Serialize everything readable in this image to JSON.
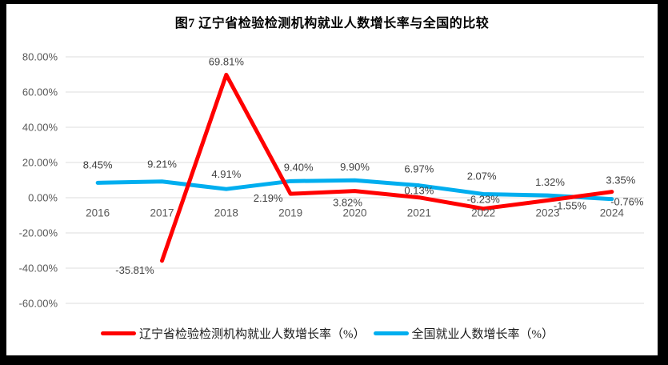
{
  "window": {
    "background": "#ffffff",
    "border_color": "#000000"
  },
  "chart_data": {
    "type": "line",
    "title": "图7 辽宁省检验检测机构就业人数增长率与全国的比较",
    "categories": [
      "2016",
      "2017",
      "2018",
      "2019",
      "2020",
      "2021",
      "2022",
      "2023",
      "2024"
    ],
    "series": [
      {
        "name": "辽宁省检验检测机构就业人数增长率（%）",
        "color": "#FF0000",
        "values": [
          null,
          -35.81,
          69.81,
          2.19,
          3.82,
          0.13,
          -6.23,
          -1.55,
          3.35
        ],
        "label_offsets": [
          null,
          [
            -34,
            16
          ],
          [
            0,
            -12
          ],
          [
            -28,
            10
          ],
          [
            -9,
            19
          ],
          [
            0,
            -4
          ],
          [
            0,
            -7
          ],
          [
            28,
            11
          ],
          [
            11,
            -10
          ]
        ]
      },
      {
        "name": "全国就业人数增长率（%）",
        "color": "#00AEEF",
        "values": [
          8.45,
          9.21,
          4.91,
          9.4,
          9.9,
          6.97,
          2.07,
          1.32,
          -0.76
        ],
        "label_offsets": [
          [
            0,
            -18
          ],
          [
            0,
            -17
          ],
          [
            0,
            -14
          ],
          [
            10,
            -13
          ],
          [
            0,
            -12
          ],
          [
            0,
            -16
          ],
          [
            -2,
            -18
          ],
          [
            3,
            -12
          ],
          [
            19,
            8
          ]
        ]
      }
    ],
    "y_axis": {
      "min": -60,
      "max": 80,
      "step": 20,
      "tick_labels": [
        "80.00%",
        "60.00%",
        "40.00%",
        "20.00%",
        "0.00%",
        "-20.00%",
        "-40.00%",
        "-60.00%"
      ]
    },
    "grid": true,
    "gridline_color": "#DCDCDC",
    "tick_label_color": "#595959",
    "data_label_color": "#404040",
    "data_label_format": "0.00%",
    "legend_position": "bottom"
  }
}
